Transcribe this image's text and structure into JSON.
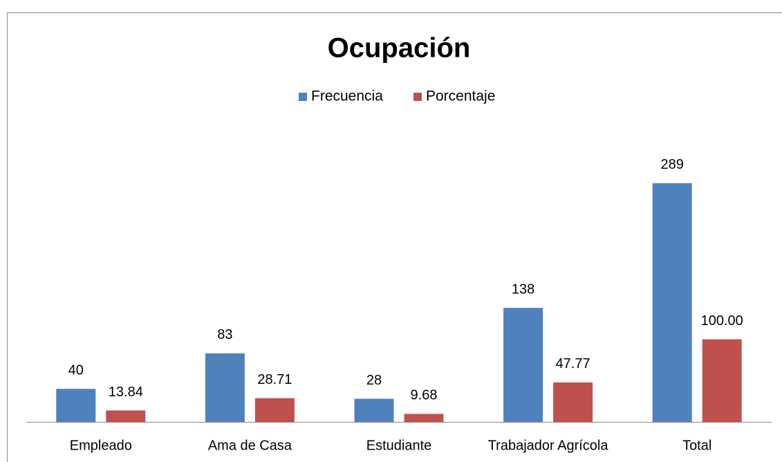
{
  "chart_data": {
    "type": "bar",
    "title": "Ocupación",
    "categories": [
      "Empleado",
      "Ama de Casa",
      "Estudiante",
      "Trabajador Agrícola",
      "Total"
    ],
    "series": [
      {
        "name": "Frecuencia",
        "color": "#4f81bd",
        "values": [
          40,
          83,
          28,
          138,
          289
        ]
      },
      {
        "name": "Porcentaje",
        "color": "#c0504d",
        "values": [
          13.84,
          28.71,
          9.68,
          47.77,
          100
        ],
        "value_labels": [
          "13.84",
          "28.71",
          "9.68",
          "47.77",
          "100.00"
        ]
      }
    ],
    "ylim": [
      0,
      350
    ],
    "legend": "top",
    "grid": false
  }
}
